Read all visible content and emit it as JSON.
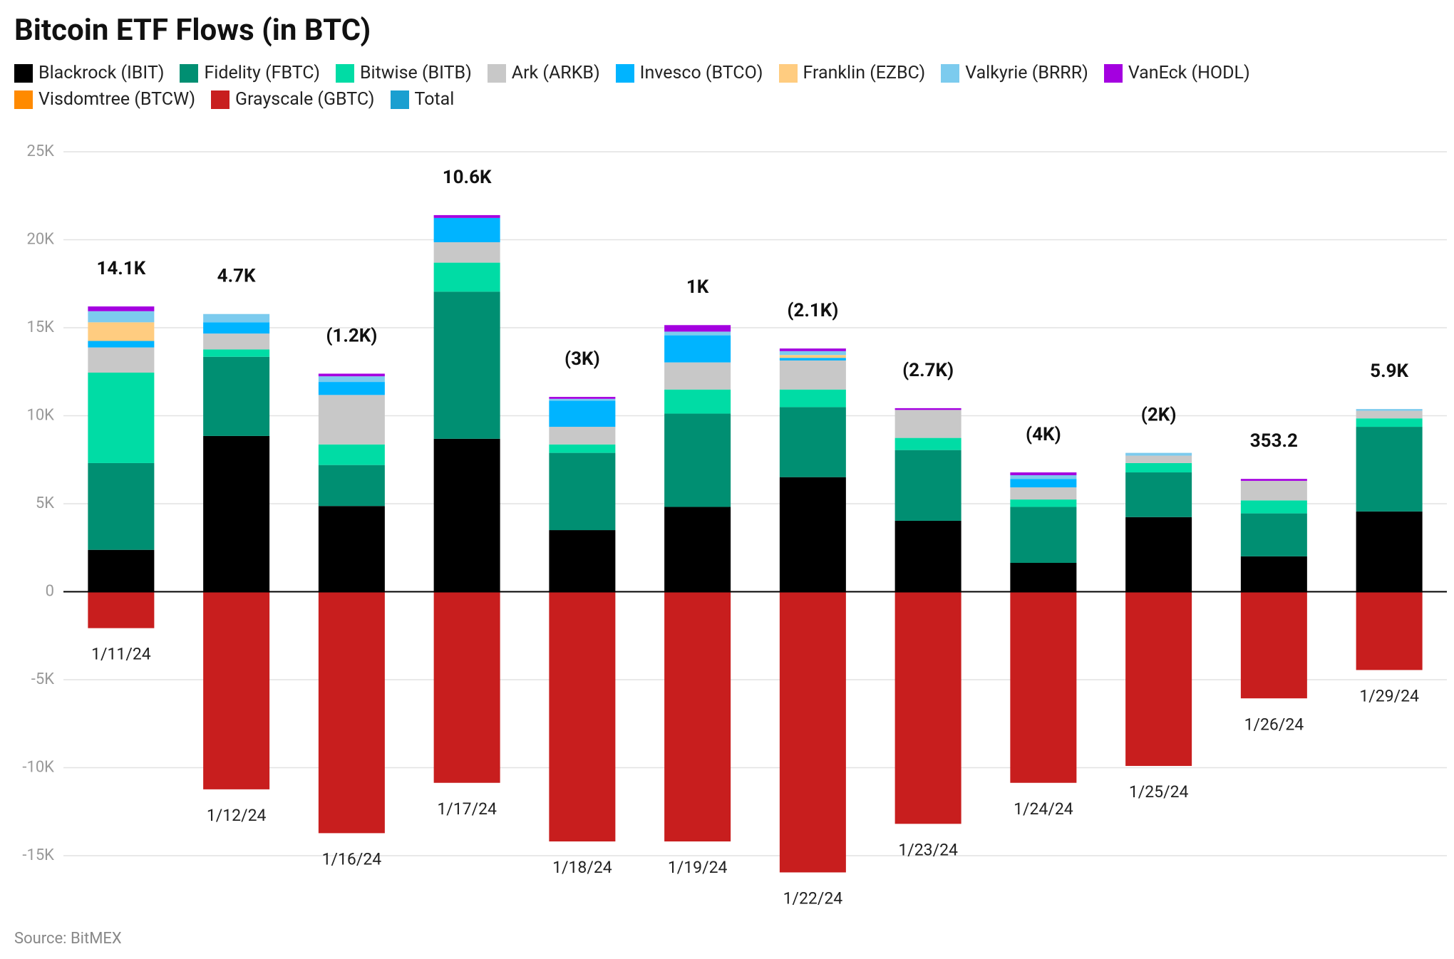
{
  "chart_data": {
    "type": "bar",
    "stacked": true,
    "title": "Bitcoin ETF Flows (in BTC)",
    "source": "Source: BitMEX",
    "categories": [
      "1/11/24",
      "1/12/24",
      "1/16/24",
      "1/17/24",
      "1/18/24",
      "1/19/24",
      "1/22/24",
      "1/23/24",
      "1/24/24",
      "1/25/24",
      "1/26/24",
      "1/29/24"
    ],
    "series": [
      {
        "name": "Blackrock (IBIT)",
        "color": "#000000",
        "values": [
          2380,
          8850,
          4870,
          8690,
          3500,
          4820,
          6510,
          4030,
          1640,
          4240,
          2010,
          4560
        ]
      },
      {
        "name": "Fidelity (FBTC)",
        "color": "#008f72",
        "values": [
          4930,
          4500,
          2330,
          8360,
          4390,
          5300,
          3980,
          4020,
          3180,
          2540,
          2440,
          4810
        ]
      },
      {
        "name": "Bitwise (BITB)",
        "color": "#00dca5",
        "values": [
          5140,
          420,
          1170,
          1650,
          480,
          1370,
          1000,
          690,
          420,
          530,
          740,
          480
        ]
      },
      {
        "name": "Ark (ARKB)",
        "color": "#c8c8c8",
        "values": [
          1430,
          900,
          2810,
          1160,
          1000,
          1540,
          1650,
          1590,
          690,
          420,
          1110,
          430
        ]
      },
      {
        "name": "Invesco (BTCO)",
        "color": "#00b4ff",
        "values": [
          370,
          640,
          740,
          1380,
          1490,
          1540,
          150,
          0,
          480,
          0,
          0,
          0
        ]
      },
      {
        "name": "Franklin (EZBC)",
        "color": "#ffcc80",
        "values": [
          1060,
          0,
          0,
          0,
          0,
          0,
          160,
          0,
          0,
          0,
          0,
          0
        ]
      },
      {
        "name": "Valkyrie (BRRR)",
        "color": "#7ccbee",
        "values": [
          630,
          470,
          320,
          0,
          100,
          210,
          220,
          0,
          210,
          160,
          0,
          100
        ]
      },
      {
        "name": "VanEck (HODL)",
        "color": "#a400e0",
        "values": [
          270,
          0,
          150,
          160,
          110,
          370,
          150,
          100,
          160,
          0,
          110,
          0
        ]
      },
      {
        "name": "Visdomtree (BTCW)",
        "color": "#ff8a00",
        "values": [
          0,
          0,
          0,
          0,
          0,
          0,
          0,
          0,
          0,
          0,
          0,
          0
        ]
      },
      {
        "name": "Grayscale (GBTC)",
        "color": "#c81e1e",
        "values": [
          -2070,
          -11230,
          -13720,
          -10860,
          -14190,
          -14190,
          -15950,
          -13190,
          -10860,
          -9900,
          -6060,
          -4450
        ]
      },
      {
        "name": "Total",
        "color": "#1a9fd0",
        "total": true,
        "values": [
          14100,
          4700,
          -1200,
          10600,
          -3000,
          1000,
          -2100,
          -2700,
          -4000,
          -2000,
          353.2,
          5900
        ],
        "value_labels": [
          "14.1K",
          "4.7K",
          "(1.2K)",
          "10.6K",
          "(3K)",
          "1K",
          "(2.1K)",
          "(2.7K)",
          "(4K)",
          "(2K)",
          "353.2",
          "5.9K"
        ]
      }
    ],
    "ylim": [
      -15000,
      25000
    ],
    "yticks": [
      {
        "value": -15000,
        "label": "-15K"
      },
      {
        "value": -10000,
        "label": "-10K"
      },
      {
        "value": -5000,
        "label": "-5K"
      },
      0,
      {
        "value": 5000,
        "label": "5K"
      },
      {
        "value": 10000,
        "label": "10K"
      },
      {
        "value": 15000,
        "label": "15K"
      },
      {
        "value": 20000,
        "label": "20K"
      },
      {
        "value": 25000,
        "label": "25K"
      }
    ],
    "grid": true
  }
}
